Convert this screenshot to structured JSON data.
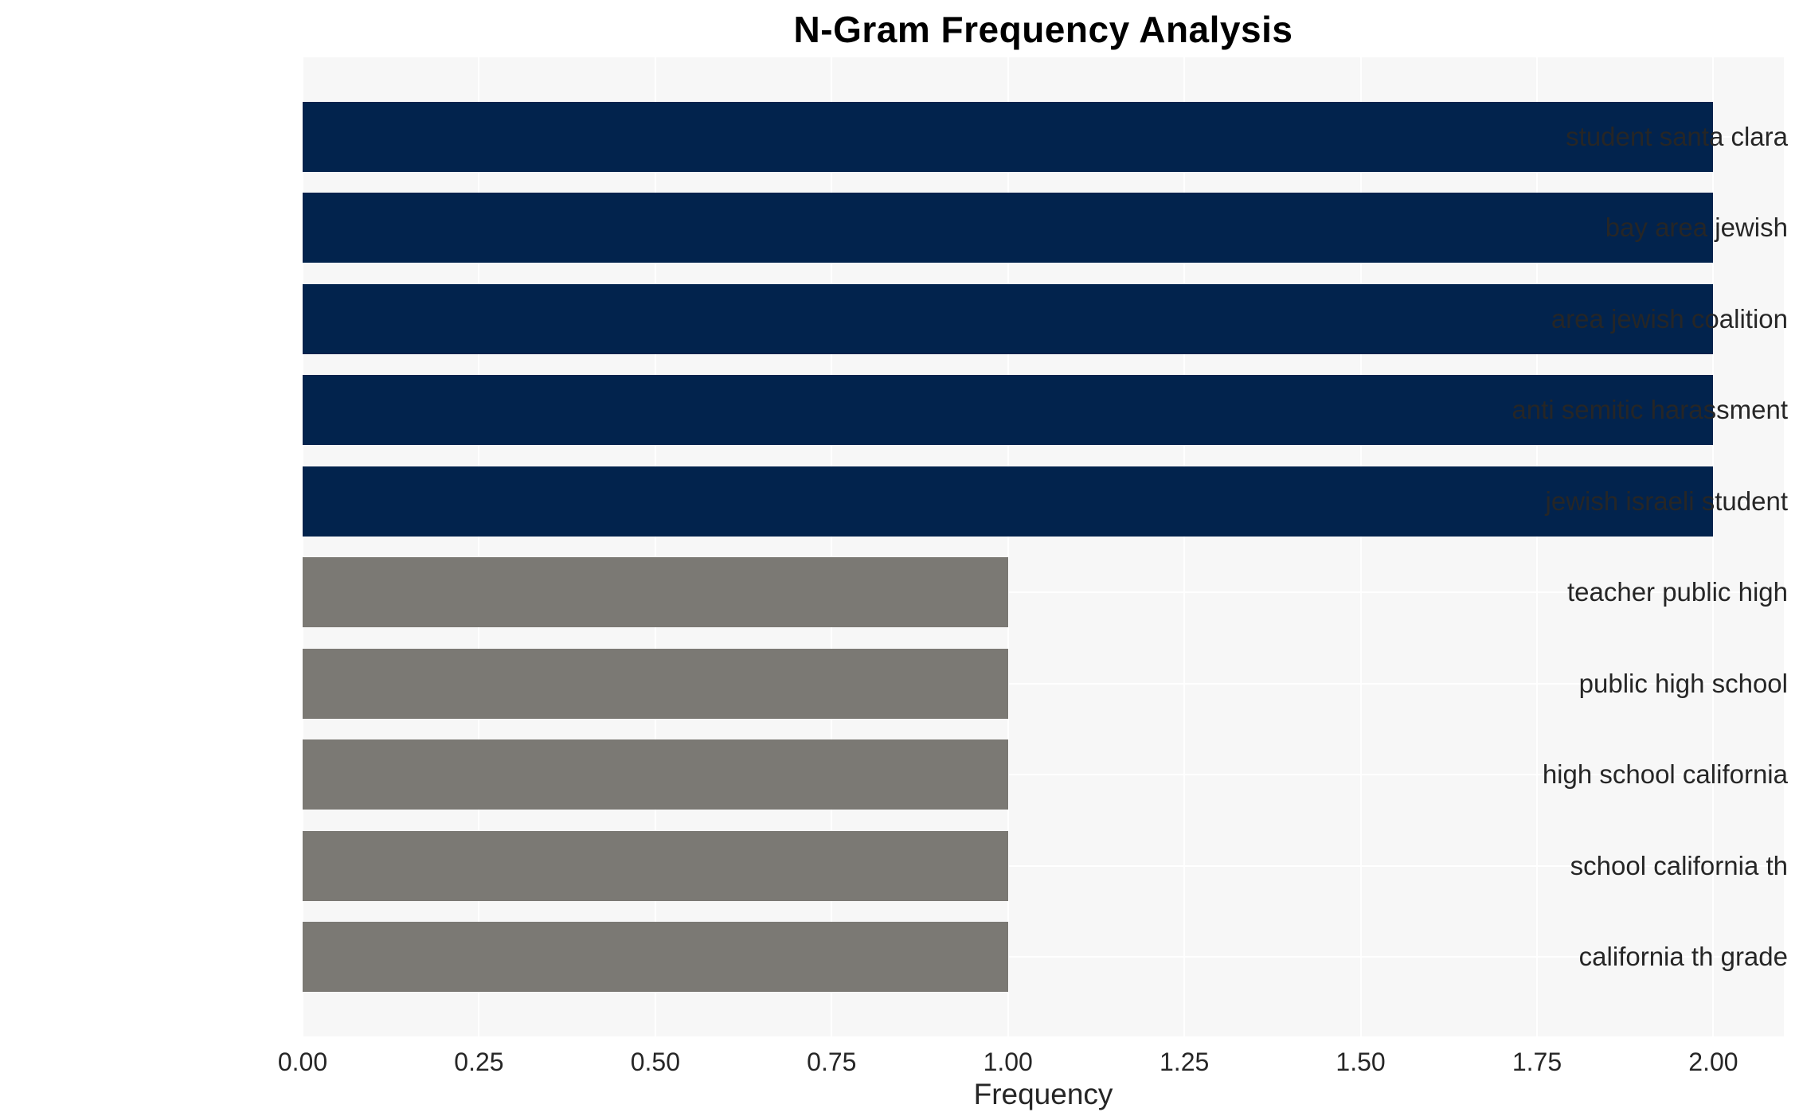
{
  "chart_data": {
    "type": "bar",
    "orientation": "horizontal",
    "title": "N-Gram Frequency Analysis",
    "xlabel": "Frequency",
    "categories": [
      "student santa clara",
      "bay area jewish",
      "area jewish coalition",
      "anti semitic harassment",
      "jewish israeli student",
      "teacher public high",
      "public high school",
      "high school california",
      "school california th",
      "california th grade"
    ],
    "values": [
      2,
      2,
      2,
      2,
      2,
      1,
      1,
      1,
      1,
      1
    ],
    "bar_colors": [
      "#02234d",
      "#02234d",
      "#02234d",
      "#02234d",
      "#02234d",
      "#7b7974",
      "#7b7974",
      "#7b7974",
      "#7b7974",
      "#7b7974"
    ],
    "xticks": [
      "0.00",
      "0.25",
      "0.50",
      "0.75",
      "1.00",
      "1.25",
      "1.50",
      "1.75",
      "2.00"
    ],
    "xtick_values": [
      0,
      0.25,
      0.5,
      0.75,
      1.0,
      1.25,
      1.5,
      1.75,
      2.0
    ],
    "xlim": [
      0,
      2.1
    ],
    "grid": true,
    "legend": null
  },
  "colors": {
    "bar_high": "#02234d",
    "bar_low": "#7b7974",
    "plot_background": "#f7f7f7",
    "grid_color": "#ffffff",
    "text": "#262626",
    "title_text": "#000000",
    "figure_background": "#ffffff"
  }
}
